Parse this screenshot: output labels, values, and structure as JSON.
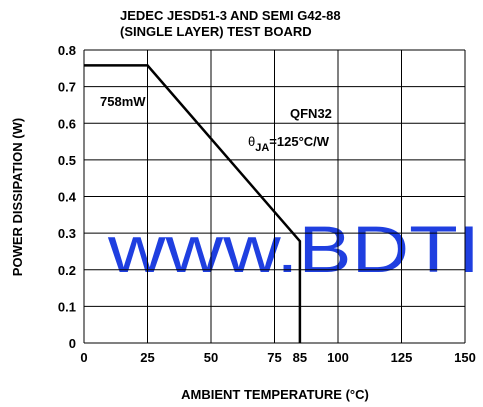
{
  "chart_data": {
    "type": "line",
    "title": [
      "JEDEC JESD51-3 AND SEMI G42-88",
      "(SINGLE LAYER) TEST BOARD"
    ],
    "x_label": "AMBIENT TEMPERATURE (°C)",
    "y_label": "POWER DISSIPATION (W)",
    "x": [
      0,
      25,
      85,
      85
    ],
    "series": [
      {
        "name": "QFN32",
        "color": "#000000",
        "values": [
          0.758,
          0.758,
          0.278,
          0
        ]
      }
    ],
    "annotations": [
      "758mW",
      "QFN32"
    ],
    "theta_ja": [
      "θ",
      "JA",
      "=125°C/W"
    ],
    "watermark": "www.BDTI",
    "xlim": [
      0,
      150
    ],
    "xticks": [
      0,
      25,
      50,
      75,
      85,
      100,
      125,
      150
    ],
    "xgrid": [
      0,
      25,
      50,
      75,
      100,
      125,
      150
    ],
    "ylim": [
      0,
      0.8
    ],
    "yticks": [
      0,
      0.1,
      0.2,
      0.3,
      0.4,
      0.5,
      0.6,
      0.7,
      0.8
    ],
    "grid": true
  }
}
